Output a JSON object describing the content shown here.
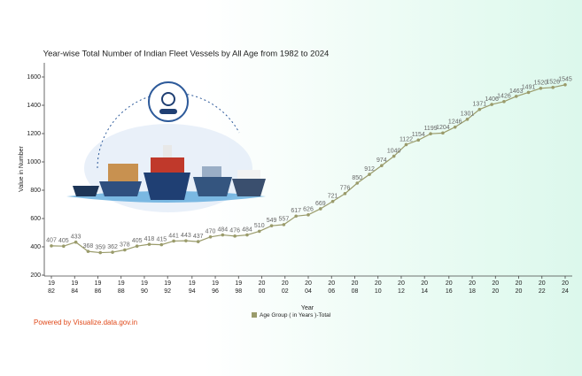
{
  "chart_data": {
    "type": "line",
    "title": "Year-wise Total Number of Indian Fleet Vessels by All Age from 1982 to 2024",
    "x_label": "Year",
    "y_label": "Value in Number",
    "x": [
      1982,
      1983,
      1984,
      1985,
      1986,
      1987,
      1988,
      1989,
      1990,
      1991,
      1992,
      1993,
      1994,
      1995,
      1996,
      1997,
      1998,
      1999,
      2000,
      2001,
      2002,
      2003,
      2004,
      2005,
      2006,
      2007,
      2008,
      2009,
      2010,
      2011,
      2012,
      2013,
      2014,
      2015,
      2016,
      2017,
      2018,
      2019,
      2020,
      2021,
      2022,
      2023,
      2024
    ],
    "series": [
      {
        "name": "Age Group ( in Years )-Total",
        "color": "#9a9b6b",
        "values": [
          407,
          405,
          433,
          368,
          359,
          362,
          378,
          405,
          418,
          415,
          441,
          443,
          437,
          470,
          484,
          476,
          484,
          510,
          549,
          557,
          617,
          626,
          669,
          721,
          776,
          850,
          912,
          974,
          1040,
          1122,
          1154,
          1199,
          1204,
          1246,
          1301,
          1371,
          1406,
          1426,
          1463,
          1491,
          1520,
          1526,
          1545
        ]
      }
    ],
    "xlim": [
      1982,
      2024
    ],
    "xticks": [
      {
        "value": 1982,
        "label": "1982"
      },
      {
        "value": 1983.9,
        "label": "1984"
      },
      {
        "value": 1985.8,
        "label": "1986"
      },
      {
        "value": 1987.7,
        "label": "1988"
      },
      {
        "value": 1989.6,
        "label": "1990"
      },
      {
        "value": 1991.5,
        "label": "1992"
      },
      {
        "value": 1993.5,
        "label": "1994"
      },
      {
        "value": 1995.4,
        "label": "1996"
      },
      {
        "value": 1997.3,
        "label": "1998"
      },
      {
        "value": 1999.2,
        "label": "2000"
      },
      {
        "value": 2001.1,
        "label": "2002"
      },
      {
        "value": 2003,
        "label": "2004"
      },
      {
        "value": 2004.9,
        "label": "2006"
      },
      {
        "value": 2006.8,
        "label": "2008"
      },
      {
        "value": 2008.7,
        "label": "2010"
      },
      {
        "value": 2010.6,
        "label": "2012"
      },
      {
        "value": 2012.5,
        "label": "2014"
      },
      {
        "value": 2014.5,
        "label": "2016"
      },
      {
        "value": 2016.4,
        "label": "2018"
      },
      {
        "value": 2018.3,
        "label": "2020"
      },
      {
        "value": 2020.2,
        "label": "2020"
      },
      {
        "value": 2022.1,
        "label": "2022"
      },
      {
        "value": 2024,
        "label": "2024"
      }
    ],
    "ylim": [
      200,
      1700
    ],
    "yticks": [
      200,
      400,
      600,
      800,
      1000,
      1200,
      1400,
      1600
    ],
    "legend_position": "bottom",
    "footer": "Powered by Visualize.data.gov.in"
  }
}
